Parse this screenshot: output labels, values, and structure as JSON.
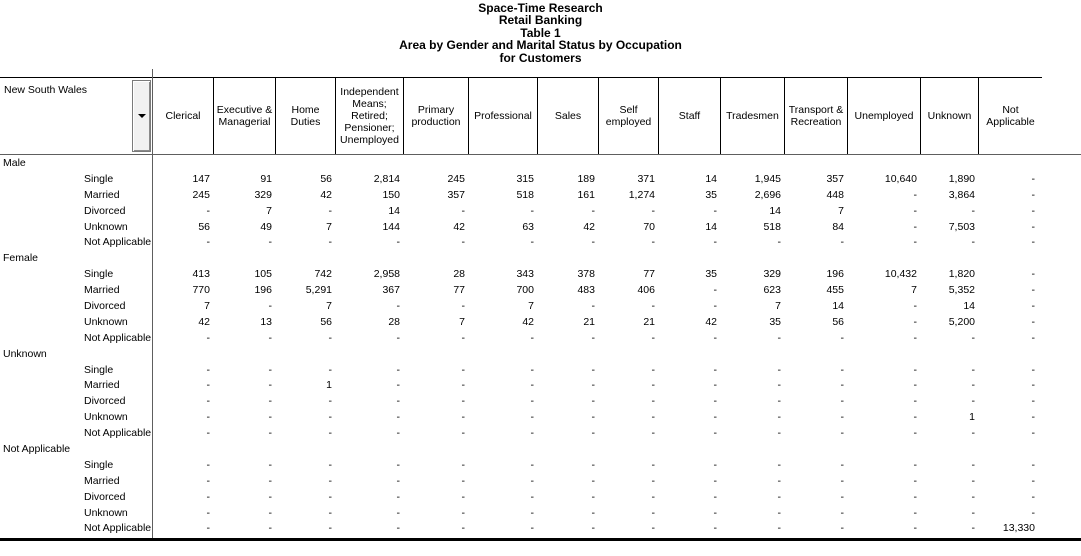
{
  "title_lines": [
    "Space-Time Research",
    "Retail Banking",
    "Table 1",
    "Area by Gender and Marital Status by Occupation",
    "for Customers"
  ],
  "table": {
    "area_label": "New South Wales",
    "columns": [
      "Clerical",
      "Executive & Managerial",
      "Home Duties",
      "Independent Means; Retired; Pensioner; Unemployed",
      "Primary production",
      "Professional",
      "Sales",
      "Self employed",
      "Staff",
      "Tradesmen",
      "Transport & Recreation",
      "Unemployed",
      "Unknown",
      "Not Applicable"
    ],
    "groups": [
      {
        "label": "Male",
        "rows": [
          {
            "label": "Single",
            "values": [
              "147",
              "91",
              "56",
              "2,814",
              "245",
              "315",
              "189",
              "371",
              "14",
              "1,945",
              "357",
              "10,640",
              "1,890",
              "-"
            ]
          },
          {
            "label": "Married",
            "values": [
              "245",
              "329",
              "42",
              "150",
              "357",
              "518",
              "161",
              "1,274",
              "35",
              "2,696",
              "448",
              "-",
              "3,864",
              "-"
            ]
          },
          {
            "label": "Divorced",
            "values": [
              "-",
              "7",
              "-",
              "14",
              "-",
              "-",
              "-",
              "-",
              "-",
              "14",
              "7",
              "-",
              "-",
              "-"
            ]
          },
          {
            "label": "Unknown",
            "values": [
              "56",
              "49",
              "7",
              "144",
              "42",
              "63",
              "42",
              "70",
              "14",
              "518",
              "84",
              "-",
              "7,503",
              "-"
            ]
          },
          {
            "label": "Not Applicable",
            "values": [
              "-",
              "-",
              "-",
              "-",
              "-",
              "-",
              "-",
              "-",
              "-",
              "-",
              "-",
              "-",
              "-",
              "-"
            ]
          }
        ]
      },
      {
        "label": "Female",
        "rows": [
          {
            "label": "Single",
            "values": [
              "413",
              "105",
              "742",
              "2,958",
              "28",
              "343",
              "378",
              "77",
              "35",
              "329",
              "196",
              "10,432",
              "1,820",
              "-"
            ]
          },
          {
            "label": "Married",
            "values": [
              "770",
              "196",
              "5,291",
              "367",
              "77",
              "700",
              "483",
              "406",
              "-",
              "623",
              "455",
              "7",
              "5,352",
              "-"
            ]
          },
          {
            "label": "Divorced",
            "values": [
              "7",
              "-",
              "7",
              "-",
              "-",
              "7",
              "-",
              "-",
              "-",
              "7",
              "14",
              "-",
              "14",
              "-"
            ]
          },
          {
            "label": "Unknown",
            "values": [
              "42",
              "13",
              "56",
              "28",
              "7",
              "42",
              "21",
              "21",
              "42",
              "35",
              "56",
              "-",
              "5,200",
              "-"
            ]
          },
          {
            "label": "Not Applicable",
            "values": [
              "-",
              "-",
              "-",
              "-",
              "-",
              "-",
              "-",
              "-",
              "-",
              "-",
              "-",
              "-",
              "-",
              "-"
            ]
          }
        ]
      },
      {
        "label": "Unknown",
        "rows": [
          {
            "label": "Single",
            "values": [
              "-",
              "-",
              "-",
              "-",
              "-",
              "-",
              "-",
              "-",
              "-",
              "-",
              "-",
              "-",
              "-",
              "-"
            ]
          },
          {
            "label": "Married",
            "values": [
              "-",
              "-",
              "1",
              "-",
              "-",
              "-",
              "-",
              "-",
              "-",
              "-",
              "-",
              "-",
              "-",
              "-"
            ]
          },
          {
            "label": "Divorced",
            "values": [
              "-",
              "-",
              "-",
              "-",
              "-",
              "-",
              "-",
              "-",
              "-",
              "-",
              "-",
              "-",
              "-",
              "-"
            ]
          },
          {
            "label": "Unknown",
            "values": [
              "-",
              "-",
              "-",
              "-",
              "-",
              "-",
              "-",
              "-",
              "-",
              "-",
              "-",
              "-",
              "1",
              "-"
            ]
          },
          {
            "label": "Not Applicable",
            "values": [
              "-",
              "-",
              "-",
              "-",
              "-",
              "-",
              "-",
              "-",
              "-",
              "-",
              "-",
              "-",
              "-",
              "-"
            ]
          }
        ]
      },
      {
        "label": "Not Applicable",
        "rows": [
          {
            "label": "Single",
            "values": [
              "-",
              "-",
              "-",
              "-",
              "-",
              "-",
              "-",
              "-",
              "-",
              "-",
              "-",
              "-",
              "-",
              "-"
            ]
          },
          {
            "label": "Married",
            "values": [
              "-",
              "-",
              "-",
              "-",
              "-",
              "-",
              "-",
              "-",
              "-",
              "-",
              "-",
              "-",
              "-",
              "-"
            ]
          },
          {
            "label": "Divorced",
            "values": [
              "-",
              "-",
              "-",
              "-",
              "-",
              "-",
              "-",
              "-",
              "-",
              "-",
              "-",
              "-",
              "-",
              "-"
            ]
          },
          {
            "label": "Unknown",
            "values": [
              "-",
              "-",
              "-",
              "-",
              "-",
              "-",
              "-",
              "-",
              "-",
              "-",
              "-",
              "-",
              "-",
              "-"
            ]
          },
          {
            "label": "Not Applicable",
            "values": [
              "-",
              "-",
              "-",
              "-",
              "-",
              "-",
              "-",
              "-",
              "-",
              "-",
              "-",
              "-",
              "-",
              "13,330"
            ]
          }
        ]
      }
    ]
  },
  "colors": {
    "background": "#ffffff",
    "text": "#000000",
    "cell_border": "#000000",
    "grid_line": "#5e5e5e",
    "button_face": "#f1f1f1"
  }
}
